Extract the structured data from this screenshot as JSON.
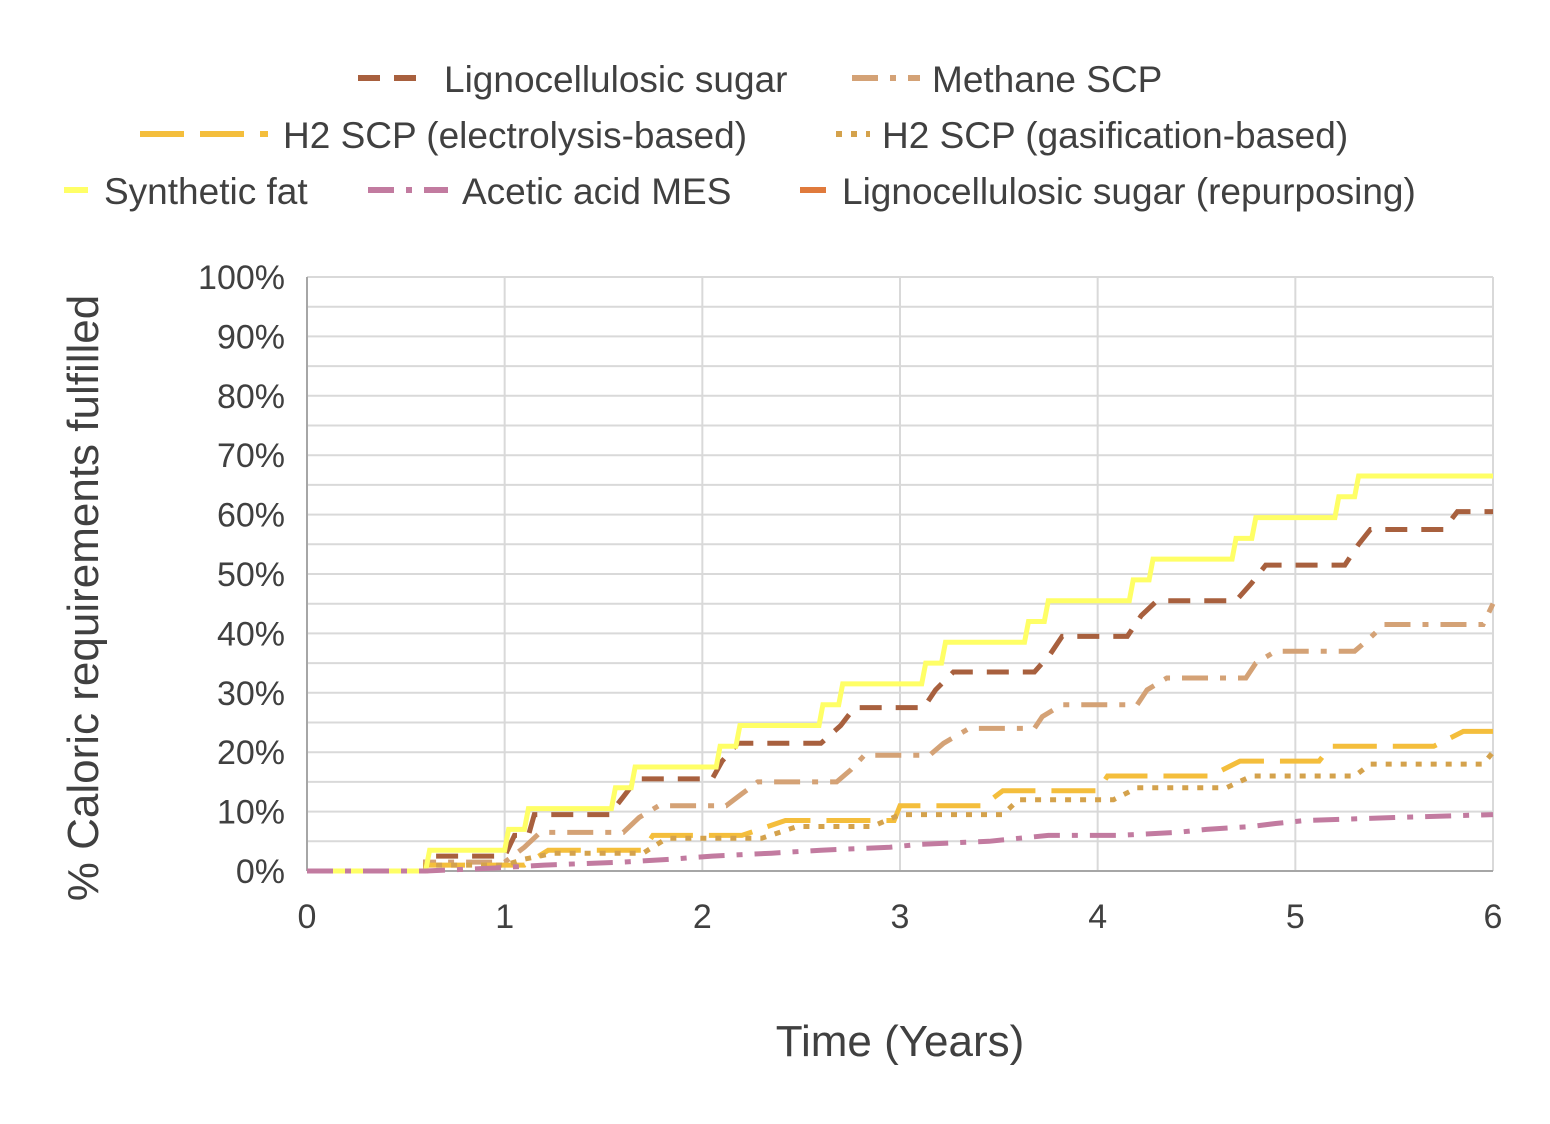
{
  "chart_data": {
    "type": "line",
    "title": "",
    "xlabel": "Time (Years)",
    "ylabel": "% Caloric requirements fulfilled",
    "xlim": [
      0,
      6
    ],
    "ylim": [
      0,
      100
    ],
    "x_ticks": [
      "0",
      "1",
      "2",
      "3",
      "4",
      "5",
      "6"
    ],
    "y_ticks": [
      "0%",
      "10%",
      "20%",
      "30%",
      "40%",
      "50%",
      "60%",
      "70%",
      "80%",
      "90%",
      "100%"
    ],
    "grid": true,
    "legend_position": "top",
    "series": [
      {
        "name": "Lignocellulosic sugar",
        "color": "#A8603E",
        "dash": "dash",
        "points": [
          [
            0,
            0
          ],
          [
            0.6,
            0
          ],
          [
            0.6,
            2.5
          ],
          [
            1.0,
            2.5
          ],
          [
            1.05,
            6
          ],
          [
            1.12,
            6
          ],
          [
            1.15,
            9.5
          ],
          [
            1.53,
            9.5
          ],
          [
            1.6,
            12.5
          ],
          [
            1.67,
            15.5
          ],
          [
            2.05,
            15.5
          ],
          [
            2.1,
            18.5
          ],
          [
            2.18,
            21.5
          ],
          [
            2.6,
            21.5
          ],
          [
            2.7,
            24.5
          ],
          [
            2.77,
            27.5
          ],
          [
            3.12,
            27.5
          ],
          [
            3.18,
            30.5
          ],
          [
            3.27,
            33.5
          ],
          [
            3.68,
            33.5
          ],
          [
            3.76,
            36.5
          ],
          [
            3.82,
            39.5
          ],
          [
            4.15,
            39.5
          ],
          [
            4.22,
            43
          ],
          [
            4.3,
            45.5
          ],
          [
            4.7,
            45.5
          ],
          [
            4.78,
            48.5
          ],
          [
            4.85,
            51.5
          ],
          [
            5.25,
            51.5
          ],
          [
            5.32,
            55
          ],
          [
            5.38,
            57.5
          ],
          [
            5.75,
            57.5
          ],
          [
            5.82,
            60.5
          ],
          [
            6,
            60.5
          ]
        ]
      },
      {
        "name": "Methane SCP",
        "color": "#D4A276",
        "dash": "dashdot",
        "points": [
          [
            0,
            0
          ],
          [
            0.6,
            0
          ],
          [
            0.6,
            1.5
          ],
          [
            1.0,
            1.5
          ],
          [
            1.1,
            4
          ],
          [
            1.18,
            6.5
          ],
          [
            1.6,
            6.5
          ],
          [
            1.68,
            9
          ],
          [
            1.78,
            11
          ],
          [
            2.12,
            11
          ],
          [
            2.2,
            13
          ],
          [
            2.28,
            15
          ],
          [
            2.68,
            15
          ],
          [
            2.75,
            17
          ],
          [
            2.82,
            19.5
          ],
          [
            3.15,
            19.5
          ],
          [
            3.22,
            21.5
          ],
          [
            3.35,
            24
          ],
          [
            3.68,
            24
          ],
          [
            3.72,
            26
          ],
          [
            3.82,
            28
          ],
          [
            4.2,
            28
          ],
          [
            4.25,
            30.5
          ],
          [
            4.35,
            32.5
          ],
          [
            4.75,
            32.5
          ],
          [
            4.8,
            35
          ],
          [
            4.9,
            37
          ],
          [
            5.3,
            37
          ],
          [
            5.37,
            39
          ],
          [
            5.45,
            41.5
          ],
          [
            5.95,
            41.5
          ],
          [
            6,
            45
          ]
        ]
      },
      {
        "name": "H2 SCP (electrolysis-based)",
        "color": "#F4BE3C",
        "dash": "longdash",
        "points": [
          [
            0,
            0
          ],
          [
            0.6,
            0
          ],
          [
            0.6,
            1
          ],
          [
            1.1,
            1
          ],
          [
            1.22,
            3.5
          ],
          [
            1.7,
            3.5
          ],
          [
            1.75,
            6
          ],
          [
            2.2,
            6
          ],
          [
            2.42,
            8.5
          ],
          [
            2.97,
            8.5
          ],
          [
            3.0,
            11
          ],
          [
            3.42,
            11
          ],
          [
            3.52,
            13.5
          ],
          [
            4.0,
            13.5
          ],
          [
            4.05,
            16
          ],
          [
            4.57,
            16
          ],
          [
            4.72,
            18.5
          ],
          [
            5.12,
            18.5
          ],
          [
            5.18,
            21
          ],
          [
            5.7,
            21
          ],
          [
            5.85,
            23.5
          ],
          [
            6,
            23.5
          ]
        ]
      },
      {
        "name": "H2 SCP (gasification-based)",
        "color": "#D4A24C",
        "dash": "dot",
        "points": [
          [
            0,
            0
          ],
          [
            0.6,
            0
          ],
          [
            0.6,
            1
          ],
          [
            1.0,
            1
          ],
          [
            1.1,
            2
          ],
          [
            1.25,
            3
          ],
          [
            1.7,
            3
          ],
          [
            1.82,
            5.5
          ],
          [
            2.3,
            5.5
          ],
          [
            2.48,
            7.5
          ],
          [
            2.86,
            7.5
          ],
          [
            3.0,
            9.5
          ],
          [
            3.52,
            9.5
          ],
          [
            3.6,
            12
          ],
          [
            4.08,
            12
          ],
          [
            4.2,
            14
          ],
          [
            4.65,
            14
          ],
          [
            4.78,
            16
          ],
          [
            5.3,
            16
          ],
          [
            5.38,
            18
          ],
          [
            5.95,
            18
          ],
          [
            6,
            20
          ]
        ]
      },
      {
        "name": "Synthetic fat",
        "color": "#FFFF66",
        "dash": "solid",
        "points": [
          [
            0,
            0
          ],
          [
            0.6,
            0
          ],
          [
            0.62,
            3.5
          ],
          [
            1.0,
            3.5
          ],
          [
            1.02,
            7
          ],
          [
            1.1,
            7
          ],
          [
            1.12,
            10.5
          ],
          [
            1.54,
            10.5
          ],
          [
            1.56,
            14
          ],
          [
            1.64,
            14
          ],
          [
            1.66,
            17.5
          ],
          [
            2.07,
            17.5
          ],
          [
            2.09,
            21
          ],
          [
            2.17,
            21
          ],
          [
            2.19,
            24.5
          ],
          [
            2.59,
            24.5
          ],
          [
            2.61,
            28
          ],
          [
            2.69,
            28
          ],
          [
            2.71,
            31.5
          ],
          [
            3.11,
            31.5
          ],
          [
            3.13,
            35
          ],
          [
            3.21,
            35
          ],
          [
            3.23,
            38.5
          ],
          [
            3.63,
            38.5
          ],
          [
            3.65,
            42
          ],
          [
            3.73,
            42
          ],
          [
            3.75,
            45.5
          ],
          [
            4.16,
            45.5
          ],
          [
            4.18,
            49
          ],
          [
            4.26,
            49
          ],
          [
            4.28,
            52.5
          ],
          [
            4.68,
            52.5
          ],
          [
            4.7,
            56
          ],
          [
            4.78,
            56
          ],
          [
            4.8,
            59.5
          ],
          [
            5.2,
            59.5
          ],
          [
            5.22,
            63
          ],
          [
            5.3,
            63
          ],
          [
            5.32,
            66.5
          ],
          [
            6,
            66.5
          ]
        ]
      },
      {
        "name": "Acetic acid MES",
        "color": "#C27BA0",
        "dash": "dashdot",
        "points": [
          [
            0,
            0
          ],
          [
            0.6,
            0
          ],
          [
            0.95,
            0.5
          ],
          [
            1.2,
            1
          ],
          [
            1.6,
            1.5
          ],
          [
            1.85,
            2
          ],
          [
            2.05,
            2.5
          ],
          [
            2.35,
            3
          ],
          [
            2.6,
            3.5
          ],
          [
            2.95,
            4
          ],
          [
            3.1,
            4.5
          ],
          [
            3.45,
            5
          ],
          [
            3.6,
            5.5
          ],
          [
            3.75,
            6
          ],
          [
            4.1,
            6
          ],
          [
            4.4,
            6.5
          ],
          [
            4.55,
            7
          ],
          [
            4.78,
            7.5
          ],
          [
            4.9,
            8
          ],
          [
            5.05,
            8.5
          ],
          [
            5.5,
            9
          ],
          [
            6,
            9.5
          ]
        ]
      },
      {
        "name": "Lignocellulosic sugar (repurposing)",
        "color": "#E07A3C",
        "dash": "solid",
        "points": []
      }
    ]
  },
  "legend": {
    "row1": [
      {
        "label": "Lignocellulosic sugar",
        "color": "#A8603E",
        "dash": "dash"
      },
      {
        "label": "Methane SCP",
        "color": "#D4A276",
        "dash": "dashdot"
      }
    ],
    "row2": [
      {
        "label": "H2 SCP (electrolysis-based)",
        "color": "#F4BE3C",
        "dash": "longdash"
      },
      {
        "label": "H2 SCP (gasification-based)",
        "color": "#D4A24C",
        "dash": "dot"
      }
    ],
    "row3": [
      {
        "label": "Synthetic fat",
        "color": "#FFFF66",
        "dash": "solid"
      },
      {
        "label": "Acetic acid MES",
        "color": "#C27BA0",
        "dash": "dashdot"
      },
      {
        "label": "Lignocellulosic sugar (repurposing)",
        "color": "#E07A3C",
        "dash": "solid"
      }
    ]
  }
}
